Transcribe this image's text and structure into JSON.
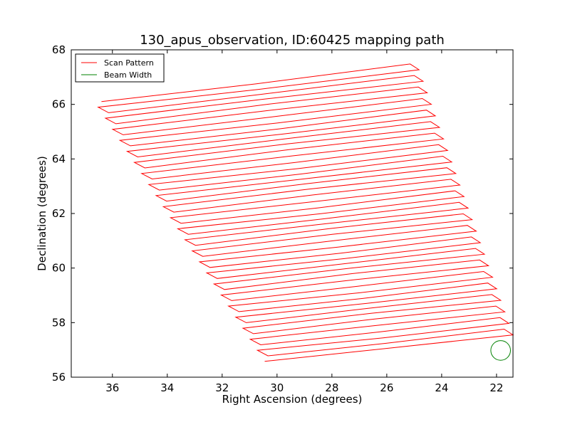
{
  "chart_data": {
    "type": "line",
    "title": "130_apus_observation, ID:60425 mapping path",
    "xlabel": "Right Ascension (degrees)",
    "ylabel": "Declination (degrees)",
    "xlim": [
      37.5,
      21.4
    ],
    "ylim": [
      56,
      68
    ],
    "x_ticks": [
      36,
      34,
      32,
      30,
      28,
      26,
      24,
      22
    ],
    "y_ticks": [
      56,
      58,
      60,
      62,
      64,
      66,
      68
    ],
    "x_tick_labels": [
      "36",
      "34",
      "32",
      "30",
      "28",
      "26",
      "24",
      "22"
    ],
    "y_tick_labels": [
      "56",
      "58",
      "60",
      "62",
      "64",
      "66",
      "68"
    ],
    "grid": false,
    "legend_position": "top-left",
    "series": [
      {
        "name": "Scan Pattern",
        "color": "#ff0000",
        "scan": {
          "legs": 48,
          "start_bottom": [
            30.45,
            56.58
          ],
          "end_bottom": [
            21.4,
            57.55
          ],
          "start_top": [
            36.65,
            66.1
          ],
          "end_top": [
            24.9,
            67.48
          ]
        }
      },
      {
        "name": "Beam Width",
        "color": "#008000",
        "circle": {
          "center": [
            21.85,
            56.98
          ],
          "radius_deg": 0.36
        }
      }
    ]
  }
}
